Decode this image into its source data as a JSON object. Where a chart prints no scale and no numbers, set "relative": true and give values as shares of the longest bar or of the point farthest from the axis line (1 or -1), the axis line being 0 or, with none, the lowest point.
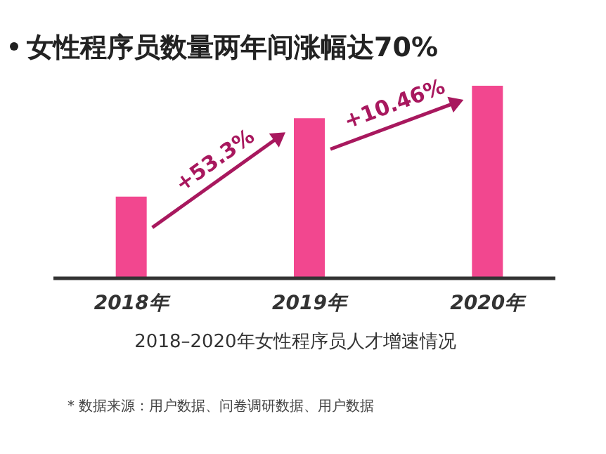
{
  "chart_data": {
    "type": "bar",
    "title": "女性程序员数量两年间涨幅达70%",
    "xlabel": "2018–2020年女性程序员人才增速情况",
    "categories": [
      "2018年",
      "2019年",
      "2020年"
    ],
    "values": [
      0.42,
      0.83,
      1
    ],
    "relative": true,
    "color": "#f2478f",
    "annotations": [
      "+53.3%",
      "+10.46%",
      "* 数据来源：用户数据、问卷调研数据、用户数据"
    ]
  }
}
